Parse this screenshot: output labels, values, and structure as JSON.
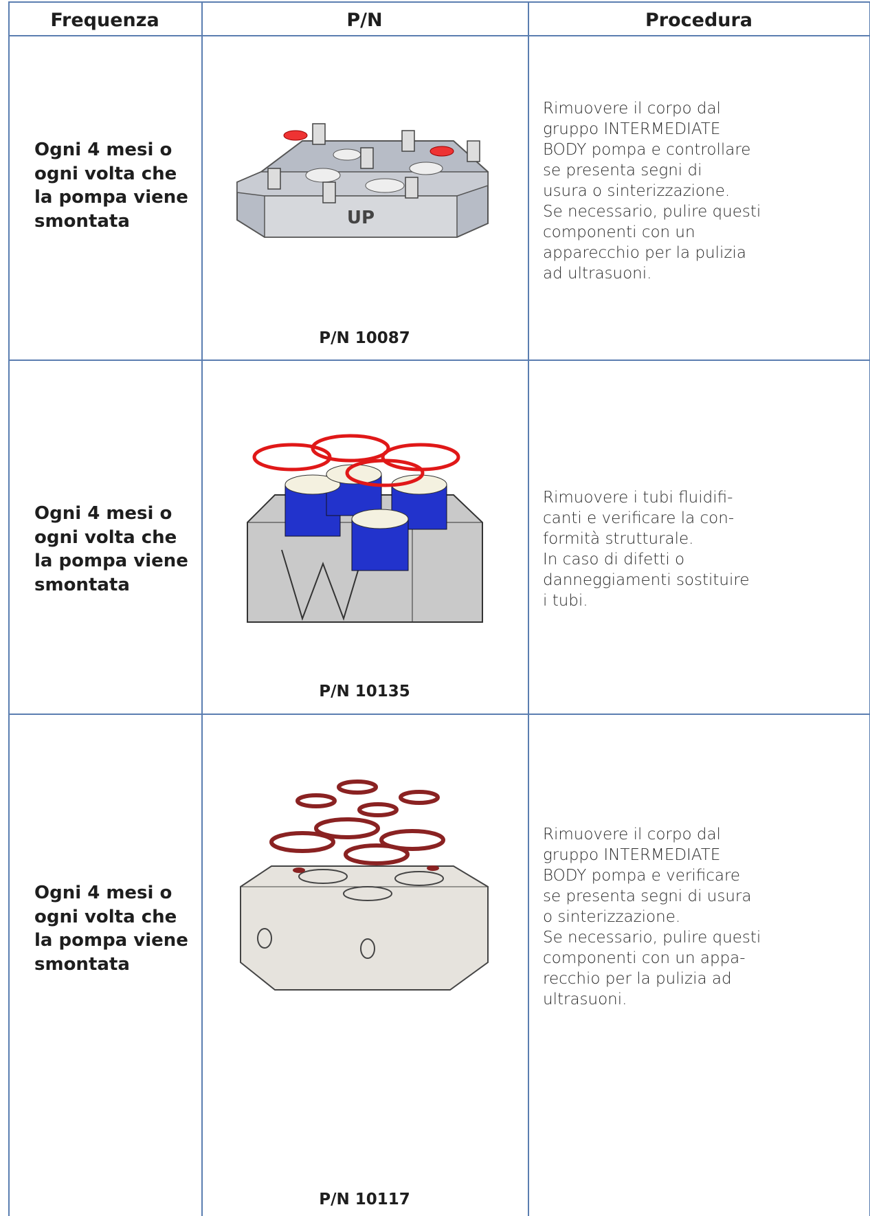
{
  "table": {
    "headers": [
      "Frequenza",
      "P/N",
      "Procedura"
    ],
    "rows": [
      {
        "frequency": [
          "Ogni 4 mesi o",
          "ogni volta che",
          "la pompa viene",
          "smontata"
        ],
        "part_number": "P/N 10087",
        "procedure": [
          "Rimuovere il corpo dal",
          "gruppo INTERMEDIATE",
          "BODY pompa e controllare",
          "se presenta segni di",
          "usura o sinterizzazione.",
          "Se necessario, pulire questi",
          "componenti con un",
          "apparecchio per la pulizia",
          "ad ultrasuoni."
        ]
      },
      {
        "frequency": [
          "Ogni 4 mesi o",
          "ogni volta che",
          "la pompa viene",
          "smontata"
        ],
        "part_number": "P/N 10135",
        "procedure": [
          "Rimuovere i tubi fluidifi-",
          "canti e verificare la con-",
          "formità strutturale.",
          "In caso di difetti o",
          "danneggiamenti sostituire",
          "i tubi."
        ]
      },
      {
        "frequency": [
          "Ogni 4 mesi o",
          "ogni volta che",
          "la pompa viene",
          "smontata"
        ],
        "part_number": "P/N 10117",
        "procedure": [
          "Rimuovere il corpo dal",
          "gruppo INTERMEDIATE",
          "BODY pompa e verificare",
          "se presenta segni di usura",
          "o sinterizzazione.",
          "Se necessario, pulire questi",
          "componenti con un appa-",
          "recchio per la pulizia ad",
          "ultrasuoni."
        ]
      }
    ]
  }
}
